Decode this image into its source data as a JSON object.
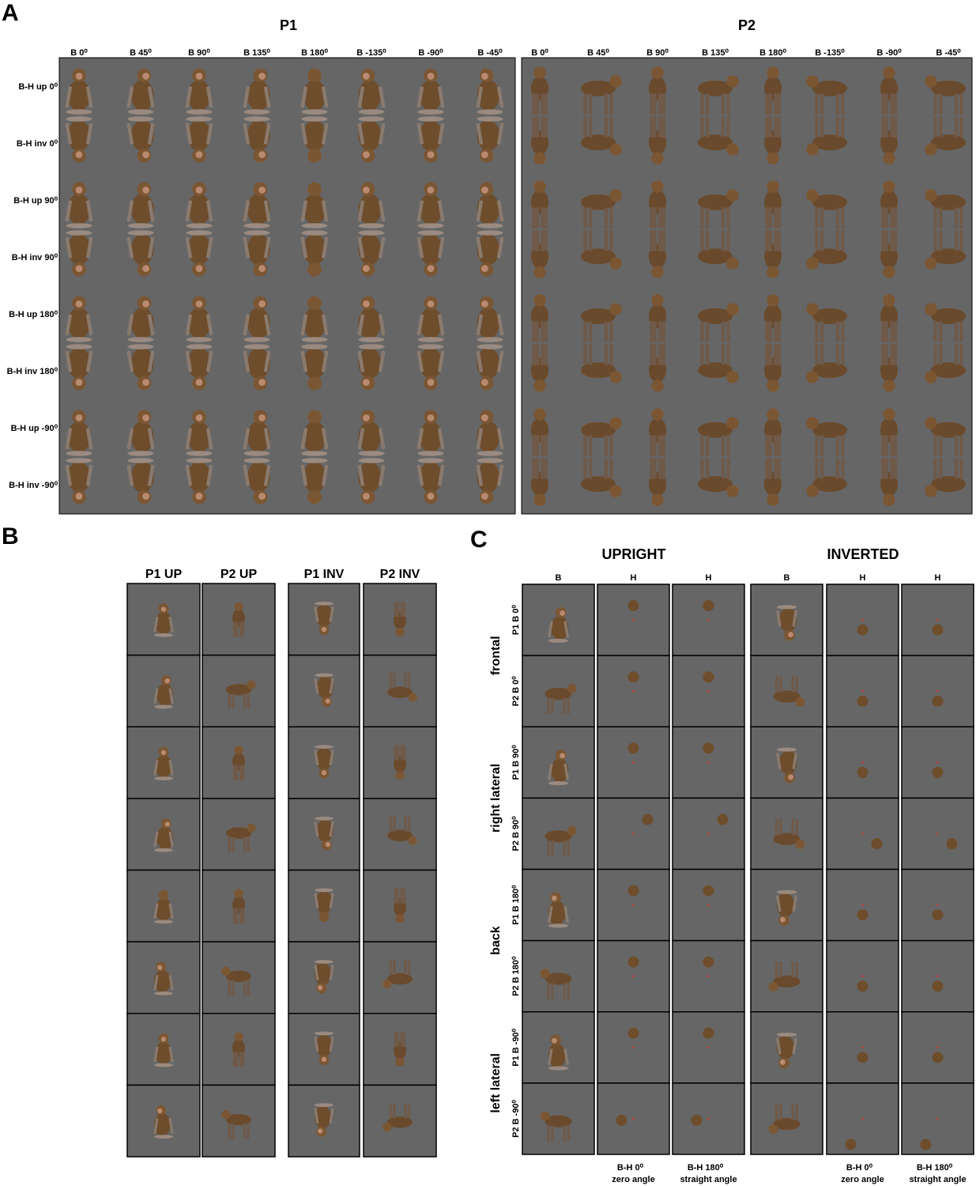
{
  "panel_a": {
    "label": "A",
    "p1": {
      "title": "P1",
      "columns": [
        "B 0⁰",
        "B 45⁰",
        "B 90⁰",
        "B 135⁰",
        "B 180⁰",
        "B -135⁰",
        "B -90⁰",
        "B -45⁰"
      ]
    },
    "p2": {
      "title": "P2",
      "columns": [
        "B 0⁰",
        "B 45⁰",
        "B 90⁰",
        "B 135⁰",
        "B 180⁰",
        "B -135⁰",
        "B -90⁰",
        "B -45⁰"
      ]
    },
    "rows": [
      "B-H up 0⁰",
      "B-H inv 0⁰",
      "B-H up 90⁰",
      "B-H inv 90⁰",
      "B-H up 180⁰",
      "B-H inv 180⁰",
      "B-H up -90⁰",
      "B-H inv -90⁰"
    ]
  },
  "panel_b": {
    "label": "B",
    "columns": [
      "P1 UP",
      "P2 UP",
      "P1 INV",
      "P2 INV"
    ]
  },
  "panel_c": {
    "label": "C",
    "groups": [
      "UPRIGHT",
      "INVERTED"
    ],
    "columns": [
      "B",
      "H",
      "H",
      "B",
      "H",
      "H"
    ],
    "rows": [
      "P1 B 0⁰",
      "P2 B 0⁰",
      "P1 B 90⁰",
      "P2 B 90⁰",
      "P1 B 180⁰",
      "P2 B 180⁰",
      "P1 B -90⁰",
      "P2 B -90⁰"
    ],
    "row_groups": [
      "frontal",
      "right lateral",
      "back",
      "left lateral"
    ],
    "footers": [
      {
        "angle": "B-H 0⁰",
        "name": "zero angle"
      },
      {
        "angle": "B-H 180⁰",
        "name": "straight angle"
      },
      {
        "angle": "B-H 0⁰",
        "name": "zero angle"
      },
      {
        "angle": "B-H 180⁰",
        "name": "straight angle"
      }
    ]
  }
}
